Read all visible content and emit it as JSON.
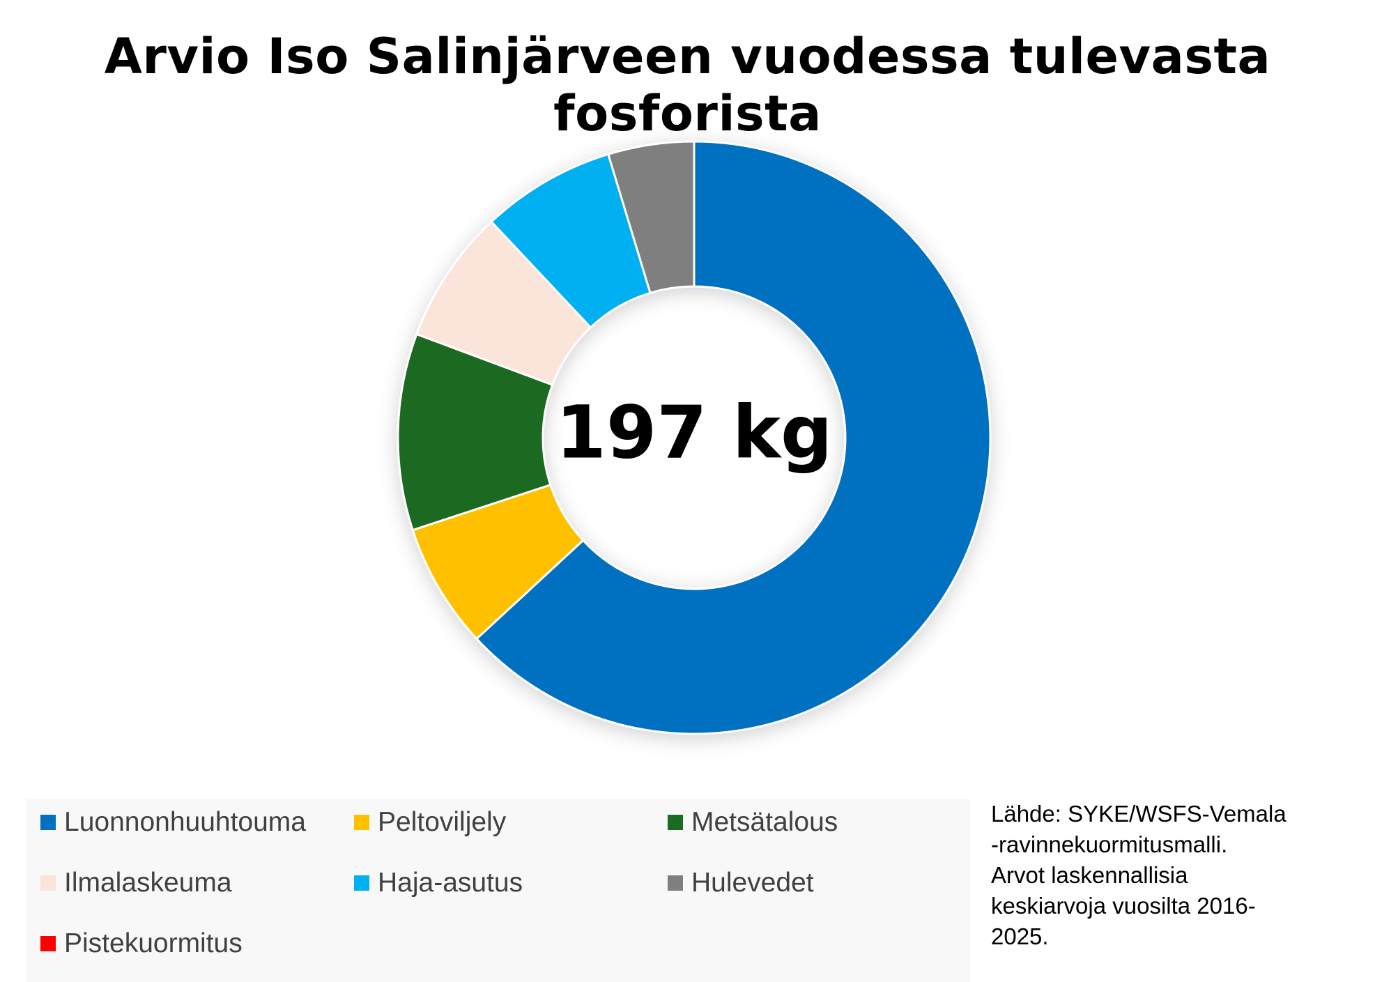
{
  "chart_data": {
    "type": "pie",
    "title": "Arvio Iso Salinjärveen vuodessa tulevasta fosforista",
    "center_label": "197 kg",
    "total": 197,
    "unit": "kg",
    "slices": [
      {
        "label": "Luonnonhuuhtouma",
        "value": 0.647,
        "color": "#0070c0"
      },
      {
        "label": "Peltoviljely",
        "value": 0.07,
        "color": "#ffc000"
      },
      {
        "label": "Metsätalous",
        "value": 0.11,
        "color": "#1b6b24"
      },
      {
        "label": "Ilmalaskeuma",
        "value": 0.075,
        "color": "#fbe4d9"
      },
      {
        "label": "Haja-asutus",
        "value": 0.075,
        "color": "#00b0f0"
      },
      {
        "label": "Hulevedet",
        "value": 0.048,
        "color": "#7f7f7f"
      },
      {
        "label": "Pistekuormitus",
        "value": 0,
        "color": "#ff0000"
      }
    ],
    "legend_position": "bottom-left",
    "source_lines": [
      "Lähde: SYKE/WSFS-Vemala",
      "-ravinnekuormitusmalli.",
      "Arvot laskennallisia",
      "keskiarvoja vuosilta 2016-",
      "2025."
    ]
  }
}
